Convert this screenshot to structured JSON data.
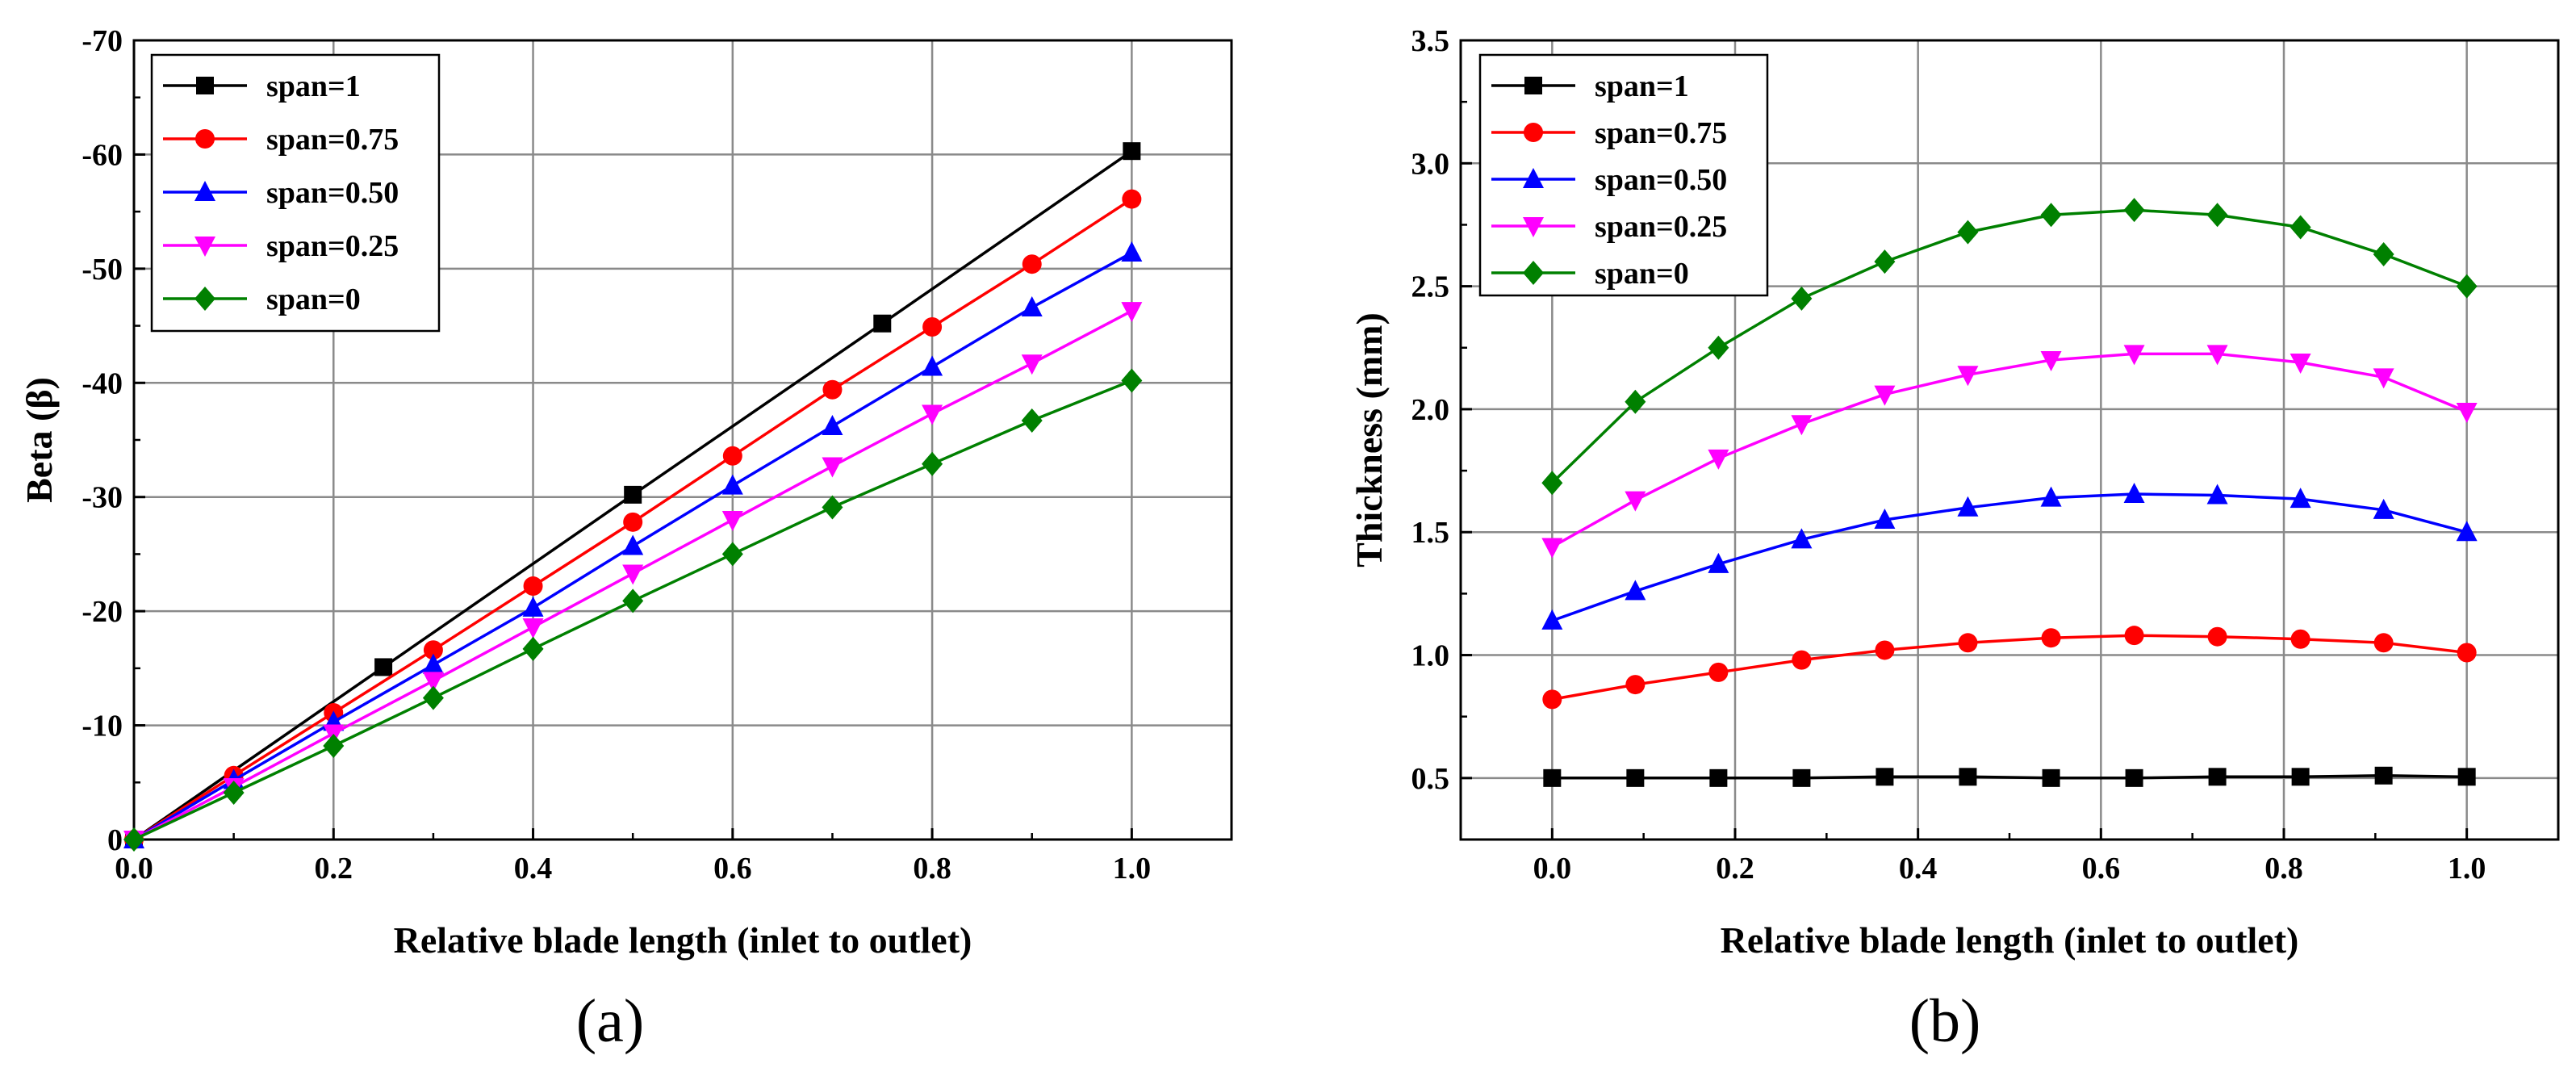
{
  "chart_data": [
    {
      "type": "line",
      "panel_label": "(a)",
      "xlabel": "Relative blade length (inlet to outlet)",
      "ylabel": "Beta (β)",
      "xlim": [
        0,
        1.1
      ],
      "ylim": [
        0,
        -70
      ],
      "x_ticks": [
        "0.0",
        "0.2",
        "0.4",
        "0.6",
        "0.8",
        "1.0"
      ],
      "y_ticks": [
        "0",
        "-10",
        "-20",
        "-30",
        "-40",
        "-50",
        "-60",
        "-70"
      ],
      "grid": true,
      "legend_position": "top-left",
      "series": [
        {
          "name": "span=1",
          "color": "#000000",
          "marker": "square",
          "x": [
            0,
            0.25,
            0.5,
            0.75,
            1.0
          ],
          "y": [
            0,
            -15.1,
            -30.2,
            -45.2,
            -60.3
          ]
        },
        {
          "name": "span=0.75",
          "color": "#ff0000",
          "marker": "circle",
          "x": [
            0,
            0.1,
            0.2,
            0.3,
            0.4,
            0.5,
            0.6,
            0.7,
            0.8,
            0.9,
            1.0
          ],
          "y": [
            0,
            -5.6,
            -11.1,
            -16.6,
            -22.2,
            -27.8,
            -33.6,
            -39.4,
            -44.9,
            -50.4,
            -56.1
          ]
        },
        {
          "name": "span=0.50",
          "color": "#0000ff",
          "marker": "triangle-up",
          "x": [
            0,
            0.1,
            0.2,
            0.3,
            0.4,
            0.5,
            0.6,
            0.7,
            0.8,
            0.9,
            1.0
          ],
          "y": [
            0,
            -5.2,
            -10.3,
            -15.3,
            -20.3,
            -25.7,
            -31.0,
            -36.2,
            -41.4,
            -46.6,
            -51.4
          ]
        },
        {
          "name": "span=0.25",
          "color": "#ff00ff",
          "marker": "triangle-down",
          "x": [
            0,
            0.1,
            0.2,
            0.3,
            0.4,
            0.5,
            0.6,
            0.7,
            0.8,
            0.9,
            1.0
          ],
          "y": [
            0,
            -4.6,
            -9.3,
            -13.9,
            -18.6,
            -23.3,
            -28.0,
            -32.7,
            -37.3,
            -41.7,
            -46.3
          ]
        },
        {
          "name": "span=0",
          "color": "#008000",
          "marker": "diamond",
          "x": [
            0,
            0.1,
            0.2,
            0.3,
            0.4,
            0.5,
            0.6,
            0.7,
            0.8,
            0.9,
            1.0
          ],
          "y": [
            0,
            -4.1,
            -8.2,
            -12.4,
            -16.7,
            -20.9,
            -25.0,
            -29.1,
            -32.9,
            -36.7,
            -40.2
          ]
        }
      ]
    },
    {
      "type": "line",
      "panel_label": "(b)",
      "xlabel": "Relative blade length (inlet to outlet)",
      "ylabel": "Thickness (mm)",
      "xlim": [
        -0.1,
        1.1
      ],
      "ylim": [
        0.25,
        3.5
      ],
      "x_ticks": [
        "0.0",
        "0.2",
        "0.4",
        "0.6",
        "0.8",
        "1.0"
      ],
      "y_ticks": [
        "0.5",
        "1.0",
        "1.5",
        "2.0",
        "2.5",
        "3.0",
        "3.5"
      ],
      "grid": true,
      "legend_position": "top-left",
      "series": [
        {
          "name": "span=1",
          "color": "#000000",
          "marker": "square",
          "x": [
            0,
            0.0909,
            0.1818,
            0.2727,
            0.3636,
            0.4545,
            0.5455,
            0.6364,
            0.7273,
            0.8182,
            0.9091,
            1.0
          ],
          "y": [
            0.5,
            0.5,
            0.5,
            0.5,
            0.505,
            0.505,
            0.5,
            0.5,
            0.505,
            0.505,
            0.51,
            0.505
          ]
        },
        {
          "name": "span=0.75",
          "color": "#ff0000",
          "marker": "circle",
          "x": [
            0,
            0.0909,
            0.1818,
            0.2727,
            0.3636,
            0.4545,
            0.5455,
            0.6364,
            0.7273,
            0.8182,
            0.9091,
            1.0
          ],
          "y": [
            0.82,
            0.88,
            0.93,
            0.98,
            1.02,
            1.05,
            1.07,
            1.08,
            1.075,
            1.065,
            1.05,
            1.01
          ]
        },
        {
          "name": "span=0.50",
          "color": "#0000ff",
          "marker": "triangle-up",
          "x": [
            0,
            0.0909,
            0.1818,
            0.2727,
            0.3636,
            0.4545,
            0.5455,
            0.6364,
            0.7273,
            0.8182,
            0.9091,
            1.0
          ],
          "y": [
            1.14,
            1.26,
            1.37,
            1.47,
            1.55,
            1.6,
            1.64,
            1.655,
            1.65,
            1.635,
            1.59,
            1.5
          ]
        },
        {
          "name": "span=0.25",
          "color": "#ff00ff",
          "marker": "triangle-down",
          "x": [
            0,
            0.0909,
            0.1818,
            0.2727,
            0.3636,
            0.4545,
            0.5455,
            0.6364,
            0.7273,
            0.8182,
            0.9091,
            1.0
          ],
          "y": [
            1.44,
            1.63,
            1.8,
            1.94,
            2.06,
            2.14,
            2.2,
            2.225,
            2.225,
            2.19,
            2.13,
            1.99
          ]
        },
        {
          "name": "span=0",
          "color": "#008000",
          "marker": "diamond",
          "x": [
            0,
            0.0909,
            0.1818,
            0.2727,
            0.3636,
            0.4545,
            0.5455,
            0.6364,
            0.7273,
            0.8182,
            0.9091,
            1.0
          ],
          "y": [
            1.7,
            2.03,
            2.25,
            2.45,
            2.6,
            2.72,
            2.79,
            2.81,
            2.79,
            2.74,
            2.63,
            2.5
          ]
        }
      ]
    }
  ]
}
